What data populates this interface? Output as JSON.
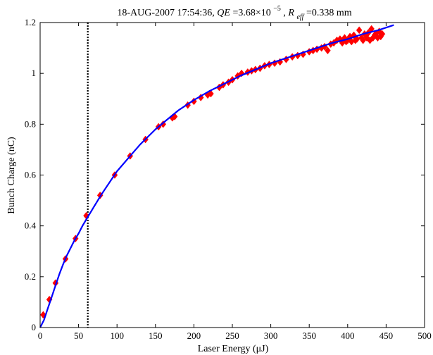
{
  "chart_data": {
    "type": "scatter",
    "title": {
      "prefix": "18-AUG-2007 17:54:36, ",
      "qe_symbol": "QE",
      "qe_value": "=3.68×10",
      "qe_exponent": "−5",
      "sep": ", ",
      "r_symbol": "R",
      "r_subscript": "eff",
      "r_value": "=0.338 mm"
    },
    "xlabel": "Laser Energy (μJ)",
    "ylabel": "Bunch Charge (nC)",
    "xlim": [
      0,
      500
    ],
    "ylim": [
      0,
      1.2
    ],
    "xticks": [
      0,
      50,
      100,
      150,
      200,
      250,
      300,
      350,
      400,
      450,
      500
    ],
    "yticks": [
      0,
      0.2,
      0.4,
      0.6,
      0.8,
      1,
      1.2
    ],
    "grid": false,
    "vline": {
      "x": 62,
      "style": "dotted",
      "color": "#000000"
    },
    "series": [
      {
        "kind": "markers",
        "marker": "diamond",
        "color": "#ff0000",
        "points": [
          [
            4,
            0.05
          ],
          [
            12,
            0.11
          ],
          [
            20,
            0.175
          ],
          [
            33,
            0.27
          ],
          [
            46,
            0.35
          ],
          [
            60,
            0.44
          ],
          [
            78,
            0.52
          ],
          [
            97,
            0.6
          ],
          [
            117,
            0.675
          ],
          [
            137,
            0.74
          ],
          [
            154,
            0.79
          ],
          [
            160,
            0.8
          ],
          [
            172,
            0.825
          ],
          [
            175,
            0.83
          ],
          [
            192,
            0.875
          ],
          [
            200,
            0.89
          ],
          [
            209,
            0.905
          ],
          [
            218,
            0.915
          ],
          [
            222,
            0.92
          ],
          [
            233,
            0.945
          ],
          [
            238,
            0.955
          ],
          [
            245,
            0.965
          ],
          [
            250,
            0.975
          ],
          [
            257,
            0.99
          ],
          [
            262,
            1.0
          ],
          [
            270,
            1.005
          ],
          [
            275,
            1.01
          ],
          [
            280,
            1.015
          ],
          [
            286,
            1.02
          ],
          [
            292,
            1.03
          ],
          [
            298,
            1.035
          ],
          [
            305,
            1.04
          ],
          [
            312,
            1.045
          ],
          [
            320,
            1.055
          ],
          [
            328,
            1.065
          ],
          [
            335,
            1.07
          ],
          [
            342,
            1.075
          ],
          [
            350,
            1.085
          ],
          [
            355,
            1.09
          ],
          [
            360,
            1.095
          ],
          [
            366,
            1.1
          ],
          [
            370,
            1.105
          ],
          [
            374,
            1.09
          ],
          [
            378,
            1.115
          ],
          [
            382,
            1.12
          ],
          [
            386,
            1.13
          ],
          [
            390,
            1.135
          ],
          [
            393,
            1.12
          ],
          [
            396,
            1.14
          ],
          [
            398,
            1.125
          ],
          [
            400,
            1.13
          ],
          [
            403,
            1.145
          ],
          [
            405,
            1.125
          ],
          [
            408,
            1.15
          ],
          [
            410,
            1.13
          ],
          [
            412,
            1.135
          ],
          [
            415,
            1.17
          ],
          [
            418,
            1.14
          ],
          [
            420,
            1.13
          ],
          [
            422,
            1.155
          ],
          [
            425,
            1.14
          ],
          [
            427,
            1.16
          ],
          [
            429,
            1.13
          ],
          [
            431,
            1.175
          ],
          [
            433,
            1.14
          ],
          [
            435,
            1.15
          ],
          [
            437,
            1.155
          ],
          [
            439,
            1.14
          ],
          [
            441,
            1.165
          ],
          [
            443,
            1.145
          ],
          [
            445,
            1.155
          ]
        ]
      },
      {
        "kind": "line",
        "color": "#0000ff",
        "points": [
          [
            0,
            0.0
          ],
          [
            5,
            0.03
          ],
          [
            10,
            0.075
          ],
          [
            15,
            0.12
          ],
          [
            20,
            0.165
          ],
          [
            25,
            0.21
          ],
          [
            30,
            0.25
          ],
          [
            35,
            0.285
          ],
          [
            40,
            0.315
          ],
          [
            45,
            0.345
          ],
          [
            50,
            0.37
          ],
          [
            55,
            0.4
          ],
          [
            62,
            0.435
          ],
          [
            70,
            0.475
          ],
          [
            80,
            0.525
          ],
          [
            90,
            0.57
          ],
          [
            100,
            0.615
          ],
          [
            110,
            0.65
          ],
          [
            120,
            0.685
          ],
          [
            130,
            0.72
          ],
          [
            140,
            0.75
          ],
          [
            150,
            0.78
          ],
          [
            160,
            0.805
          ],
          [
            170,
            0.83
          ],
          [
            180,
            0.855
          ],
          [
            190,
            0.875
          ],
          [
            200,
            0.895
          ],
          [
            220,
            0.93
          ],
          [
            240,
            0.96
          ],
          [
            260,
            0.99
          ],
          [
            280,
            1.015
          ],
          [
            300,
            1.04
          ],
          [
            320,
            1.06
          ],
          [
            340,
            1.08
          ],
          [
            360,
            1.1
          ],
          [
            380,
            1.12
          ],
          [
            400,
            1.135
          ],
          [
            420,
            1.155
          ],
          [
            440,
            1.17
          ],
          [
            460,
            1.19
          ]
        ]
      }
    ]
  }
}
